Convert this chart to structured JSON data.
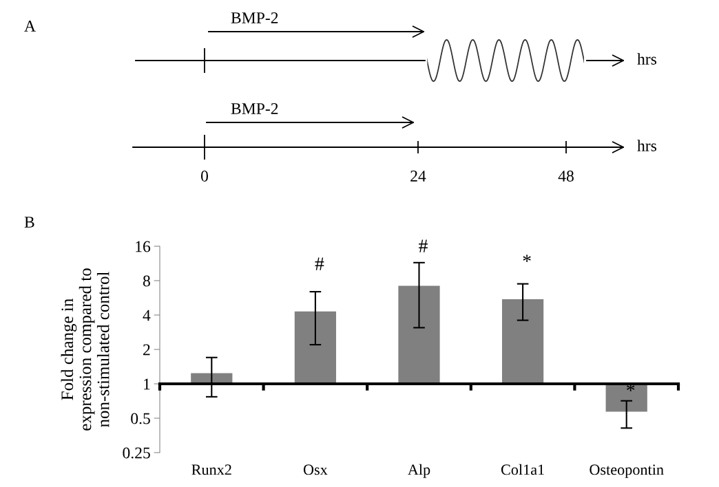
{
  "chart_data": [
    {
      "type": "other",
      "title": "A",
      "annotations": [
        "BMP-2",
        "BMP-2",
        "hrs",
        "hrs",
        "0",
        "24",
        "48"
      ]
    },
    {
      "type": "bar",
      "title": "B",
      "ylabel": "Fold change in\nexpression compared to\nnon-stimulated control",
      "categories": [
        "Runx2",
        "Osx",
        "Alp",
        "Col1a1",
        "Osteopontin"
      ],
      "values": [
        0.24,
        3.3,
        6.2,
        4.5,
        -0.43
      ],
      "base": [
        1,
        1,
        1,
        1,
        1
      ],
      "errors": [
        [
          0.77,
          1.7
        ],
        [
          2.2,
          6.4
        ],
        [
          3.1,
          11.5
        ],
        [
          3.6,
          7.5
        ],
        [
          0.41,
          0.71
        ]
      ],
      "color": "#808080",
      "log": "y",
      "ylim": [
        0.25,
        16
      ],
      "yticks": [
        0.25,
        0.5,
        1,
        2,
        4,
        8,
        16
      ],
      "annotations": [
        "#",
        "#",
        "*",
        "*"
      ]
    }
  ]
}
